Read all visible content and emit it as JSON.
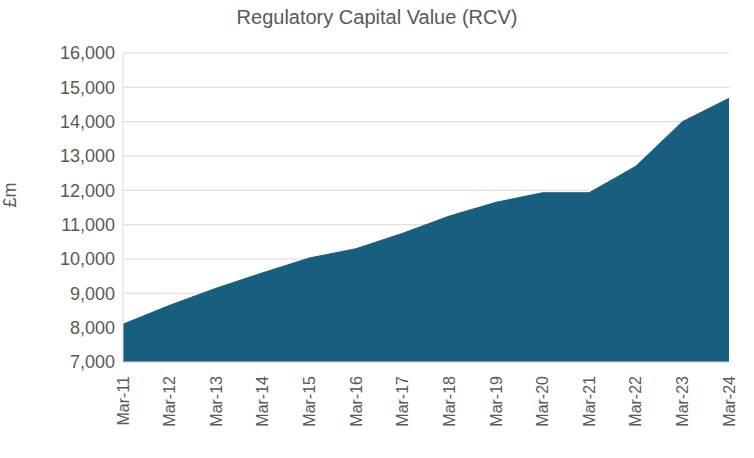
{
  "chart_data": {
    "type": "area",
    "title": "Regulatory Capital Value (RCV)",
    "y_label": "£m",
    "categories": [
      "Mar-11",
      "Mar-12",
      "Mar-13",
      "Mar-14",
      "Mar-15",
      "Mar-16",
      "Mar-17",
      "Mar-18",
      "Mar-19",
      "Mar-20",
      "Mar-21",
      "Mar-22",
      "Mar-23",
      "Mar-24"
    ],
    "values": [
      8100,
      8650,
      9150,
      9600,
      10030,
      10300,
      10750,
      11250,
      11650,
      11930,
      11930,
      12700,
      14000,
      14680
    ],
    "color": "#185f7f",
    "ylim": [
      7000,
      16000
    ],
    "yticks": [
      {
        "value": 7000,
        "label": "7,000"
      },
      {
        "value": 8000,
        "label": "8,000"
      },
      {
        "value": 9000,
        "label": "9,000"
      },
      {
        "value": 10000,
        "label": "10,000"
      },
      {
        "value": 11000,
        "label": "11,000"
      },
      {
        "value": 12000,
        "label": "12,000"
      },
      {
        "value": 13000,
        "label": "13,000"
      },
      {
        "value": 14000,
        "label": "14,000"
      },
      {
        "value": 15000,
        "label": "15,000"
      },
      {
        "value": 16000,
        "label": "16,000"
      }
    ],
    "grid": true
  }
}
